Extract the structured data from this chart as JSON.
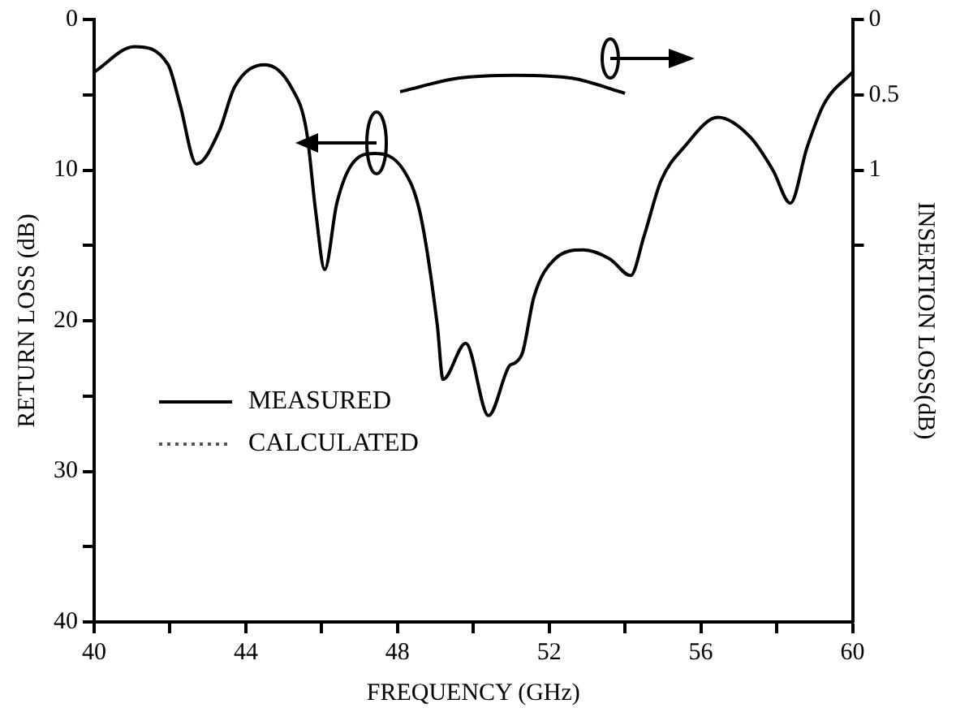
{
  "chart_data": {
    "type": "line",
    "xlabel": "FREQUENCY (GHz)",
    "ylabel": "RETURN LOSS (dB)",
    "y2label": "INSERTION LOSS(dB)",
    "xlim": [
      40,
      60
    ],
    "xticks": [
      40,
      {
        "value": 42,
        "label": null
      },
      44,
      {
        "value": 46,
        "label": null
      },
      48,
      {
        "value": 50,
        "label": null
      },
      52,
      {
        "value": 54,
        "label": null
      },
      56,
      {
        "value": 58,
        "label": null
      },
      60
    ],
    "ylim": [
      40,
      0
    ],
    "yticks": [
      0,
      {
        "value": 5,
        "label": null
      },
      10,
      {
        "value": 15,
        "label": null
      },
      20,
      {
        "value": 25,
        "label": null
      },
      30,
      {
        "value": 35,
        "label": null
      },
      40
    ],
    "y2lim": [
      4,
      0
    ],
    "y2ticks": [
      0,
      0.5,
      1,
      {
        "value": 1.5,
        "label": null
      }
    ],
    "grid": false,
    "legend": "bottom left",
    "marker": "none",
    "series": [
      {
        "name": "MEASURED",
        "color": "#000000",
        "line_style": "solid",
        "x": [
          40,
          41.06,
          41.95,
          42.26,
          42.7,
          43.3,
          43.7,
          44.5,
          45.2,
          45.6,
          45.85,
          46.08,
          46.4,
          46.8,
          47.4,
          48.16,
          48.6,
          49.05,
          49.2,
          49.8,
          50.4,
          50.95,
          51.1,
          51.3,
          51.6,
          52.15,
          52.9,
          53.6,
          54.15,
          54.5,
          54.95,
          55.55,
          56.45,
          57.3,
          57.9,
          58.36,
          58.8,
          59.25,
          60
        ],
        "values": [
          3.5,
          1.8,
          3.0,
          5.6,
          9.6,
          7.4,
          4.5,
          3.0,
          4.5,
          7.4,
          12.9,
          16.6,
          12.2,
          9.6,
          8.9,
          10.0,
          12.9,
          20.3,
          23.9,
          21.5,
          26.3,
          23.0,
          22.8,
          22.1,
          18.4,
          15.9,
          15.3,
          15.9,
          17.0,
          14.4,
          10.7,
          8.5,
          6.5,
          7.8,
          10.0,
          12.2,
          8.5,
          5.6,
          3.5
        ]
      },
      {
        "name": "CALCULATED",
        "color": "#555555",
        "line_style": "dotted"
      },
      {
        "color": "#000000",
        "line_style": "solid",
        "axis": "y2",
        "x": [
          48.07,
          49.6,
          51.1,
          52.6,
          54.0
        ],
        "values": [
          0.48,
          0.39,
          0.37,
          0.39,
          0.49
        ]
      }
    ]
  }
}
